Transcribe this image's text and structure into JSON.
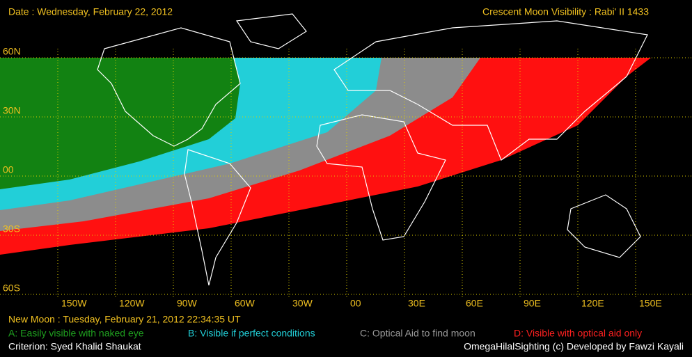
{
  "header": {
    "date": "Date : Wednesday, February 22, 2012",
    "title": "Crescent Moon Visibility : Rabi' II  1433"
  },
  "lat_labels": [
    "60N",
    "30N",
    "00",
    "30S",
    "60S"
  ],
  "lon_labels": [
    "150W",
    "120W",
    "90W",
    "60W",
    "30W",
    "00",
    "30E",
    "60E",
    "90E",
    "120E",
    "150E"
  ],
  "footer": {
    "new_moon": "New Moon : Tuesday, February 21, 2012  22:34:35  UT",
    "legend": [
      "A: Easily visible with naked eye",
      "B: Visible if perfect conditions",
      "C: Optical Aid to find moon",
      "D: Visible with optical aid only"
    ],
    "criterion": "Criterion: Syed Khalid Shaukat",
    "credit": "OmegaHilalSighting  (c)  Developed by Fawzi Kayali"
  }
}
